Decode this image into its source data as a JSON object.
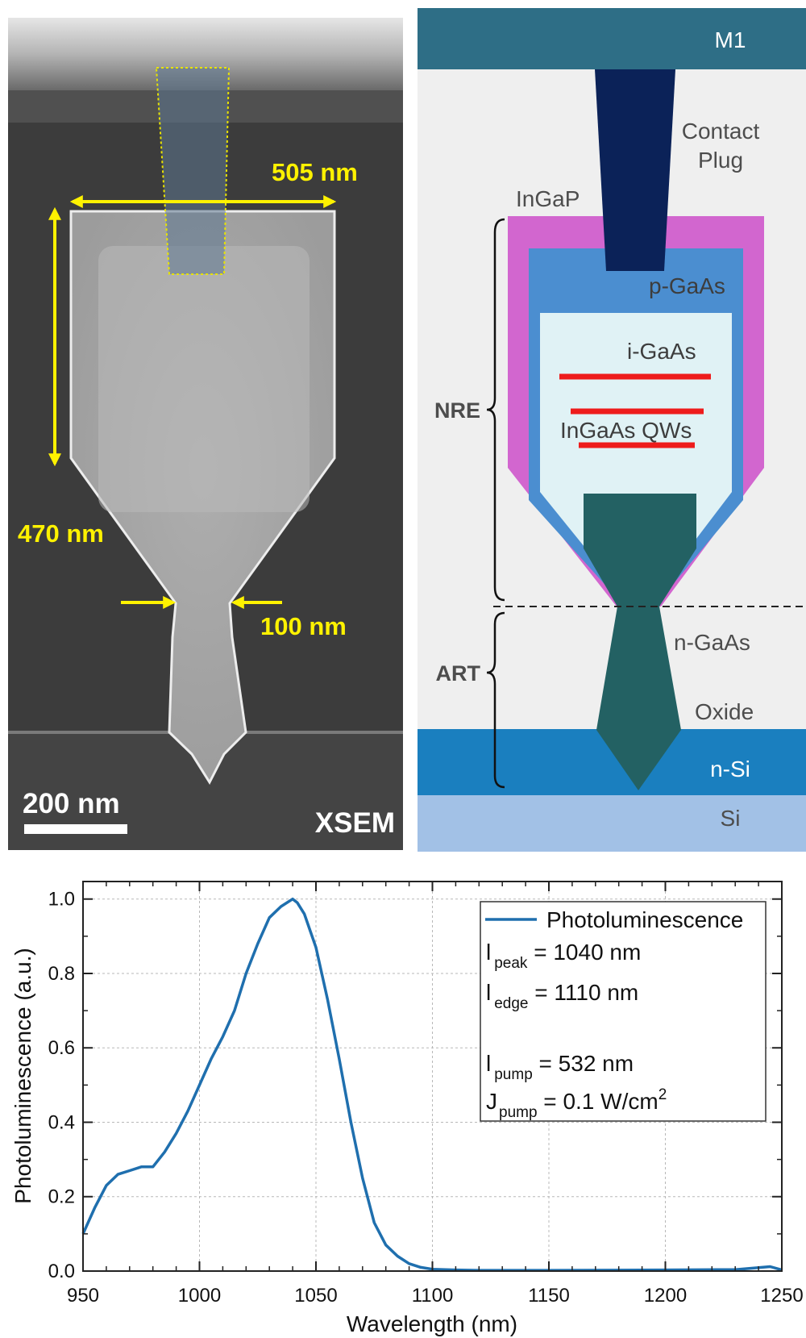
{
  "sem_panel": {
    "dim_width": "505 nm",
    "dim_height": "470 nm",
    "dim_neck": "100 nm",
    "scale_bar": "200 nm",
    "label": "XSEM"
  },
  "schematic": {
    "layers": {
      "m1": "M1",
      "contact_1": "Contact",
      "contact_2": "Plug",
      "ingap": "InGaP",
      "pgaas": "p-GaAs",
      "igaas": "i-GaAs",
      "qws": "InGaAs QWs",
      "ngaas": "n-GaAs",
      "oxide": "Oxide",
      "nsi": "n-Si",
      "si": "Si"
    },
    "regions": {
      "nre": "NRE",
      "art": "ART"
    },
    "colors": {
      "m1": "#2e6e86",
      "contact": "#0b2258",
      "ingap": "#d266cf",
      "pgaas": "#4b8ed0",
      "igaas": "#e0f2f5",
      "ngaas": "#236163",
      "qw": "#ee1c1c",
      "nsi": "#1a7fbf",
      "si": "#a2c1e6",
      "background": "#efefef"
    }
  },
  "chart_data": {
    "type": "line",
    "xlabel": "Wavelength (nm)",
    "ylabel": "Photoluminescence (a.u.)",
    "xlim": [
      950,
      1250
    ],
    "ylim": [
      0,
      1.0
    ],
    "xticks": [
      950,
      1000,
      1050,
      1100,
      1150,
      1200,
      1250
    ],
    "yticks": [
      0.0,
      0.2,
      0.4,
      0.6,
      0.8,
      1.0
    ],
    "ytick_labels": [
      "0.0",
      "0.2",
      "0.4",
      "0.6",
      "0.8",
      "1.0"
    ],
    "grid": true,
    "legend_position": "top-right",
    "series": [
      {
        "name": "Photoluminescence",
        "color": "#1f6fae",
        "x": [
          950,
          955,
          960,
          965,
          970,
          975,
          980,
          985,
          990,
          995,
          1000,
          1005,
          1010,
          1015,
          1020,
          1025,
          1030,
          1035,
          1040,
          1042,
          1045,
          1050,
          1055,
          1060,
          1065,
          1070,
          1075,
          1080,
          1085,
          1090,
          1095,
          1100,
          1110,
          1120,
          1150,
          1200,
          1230,
          1245,
          1250
        ],
        "y": [
          0.1,
          0.17,
          0.23,
          0.26,
          0.27,
          0.28,
          0.28,
          0.32,
          0.37,
          0.43,
          0.5,
          0.57,
          0.63,
          0.7,
          0.8,
          0.88,
          0.95,
          0.98,
          1.0,
          0.99,
          0.96,
          0.87,
          0.73,
          0.57,
          0.4,
          0.25,
          0.13,
          0.07,
          0.04,
          0.02,
          0.01,
          0.005,
          0.003,
          0.002,
          0.002,
          0.003,
          0.004,
          0.012,
          0.003
        ]
      }
    ],
    "annotations": {
      "lambda_peak": {
        "symbol": "l",
        "sub": "peak",
        "value": " = 1040 nm"
      },
      "lambda_edge": {
        "symbol": "l",
        "sub": "edge",
        "value": " = 1110 nm"
      },
      "lambda_pump": {
        "symbol": "l",
        "sub": "pump",
        "value": " = 532 nm"
      },
      "j_pump": {
        "symbol": "J",
        "sub": "pump",
        "value": " = 0.1 W/cm",
        "sup": "2"
      }
    }
  }
}
